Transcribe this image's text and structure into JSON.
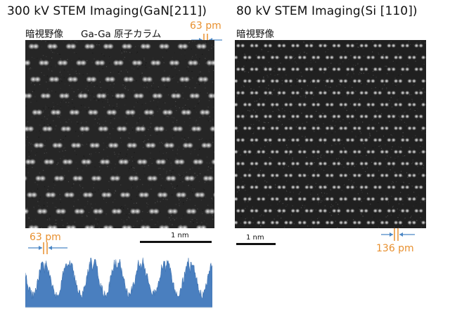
{
  "left": {
    "title": "300 kV STEM Imaging(GaN[211])",
    "mode_label": "暗視野像",
    "column_label": "Ga-Ga 原子カラム",
    "spacing": "63 pm",
    "scalebar": "1 nm",
    "profile_spacing": "63 pm"
  },
  "right": {
    "title": "80 kV STEM Imaging(Si [110])",
    "mode_label": "暗視野像",
    "scalebar": "1 nm",
    "spacing": "136 pm"
  },
  "colors": {
    "accent_orange": "#e8902f",
    "arrow_blue": "#4a86c5",
    "profile_fill": "#4a7fbf",
    "image_bg": "#222222"
  }
}
